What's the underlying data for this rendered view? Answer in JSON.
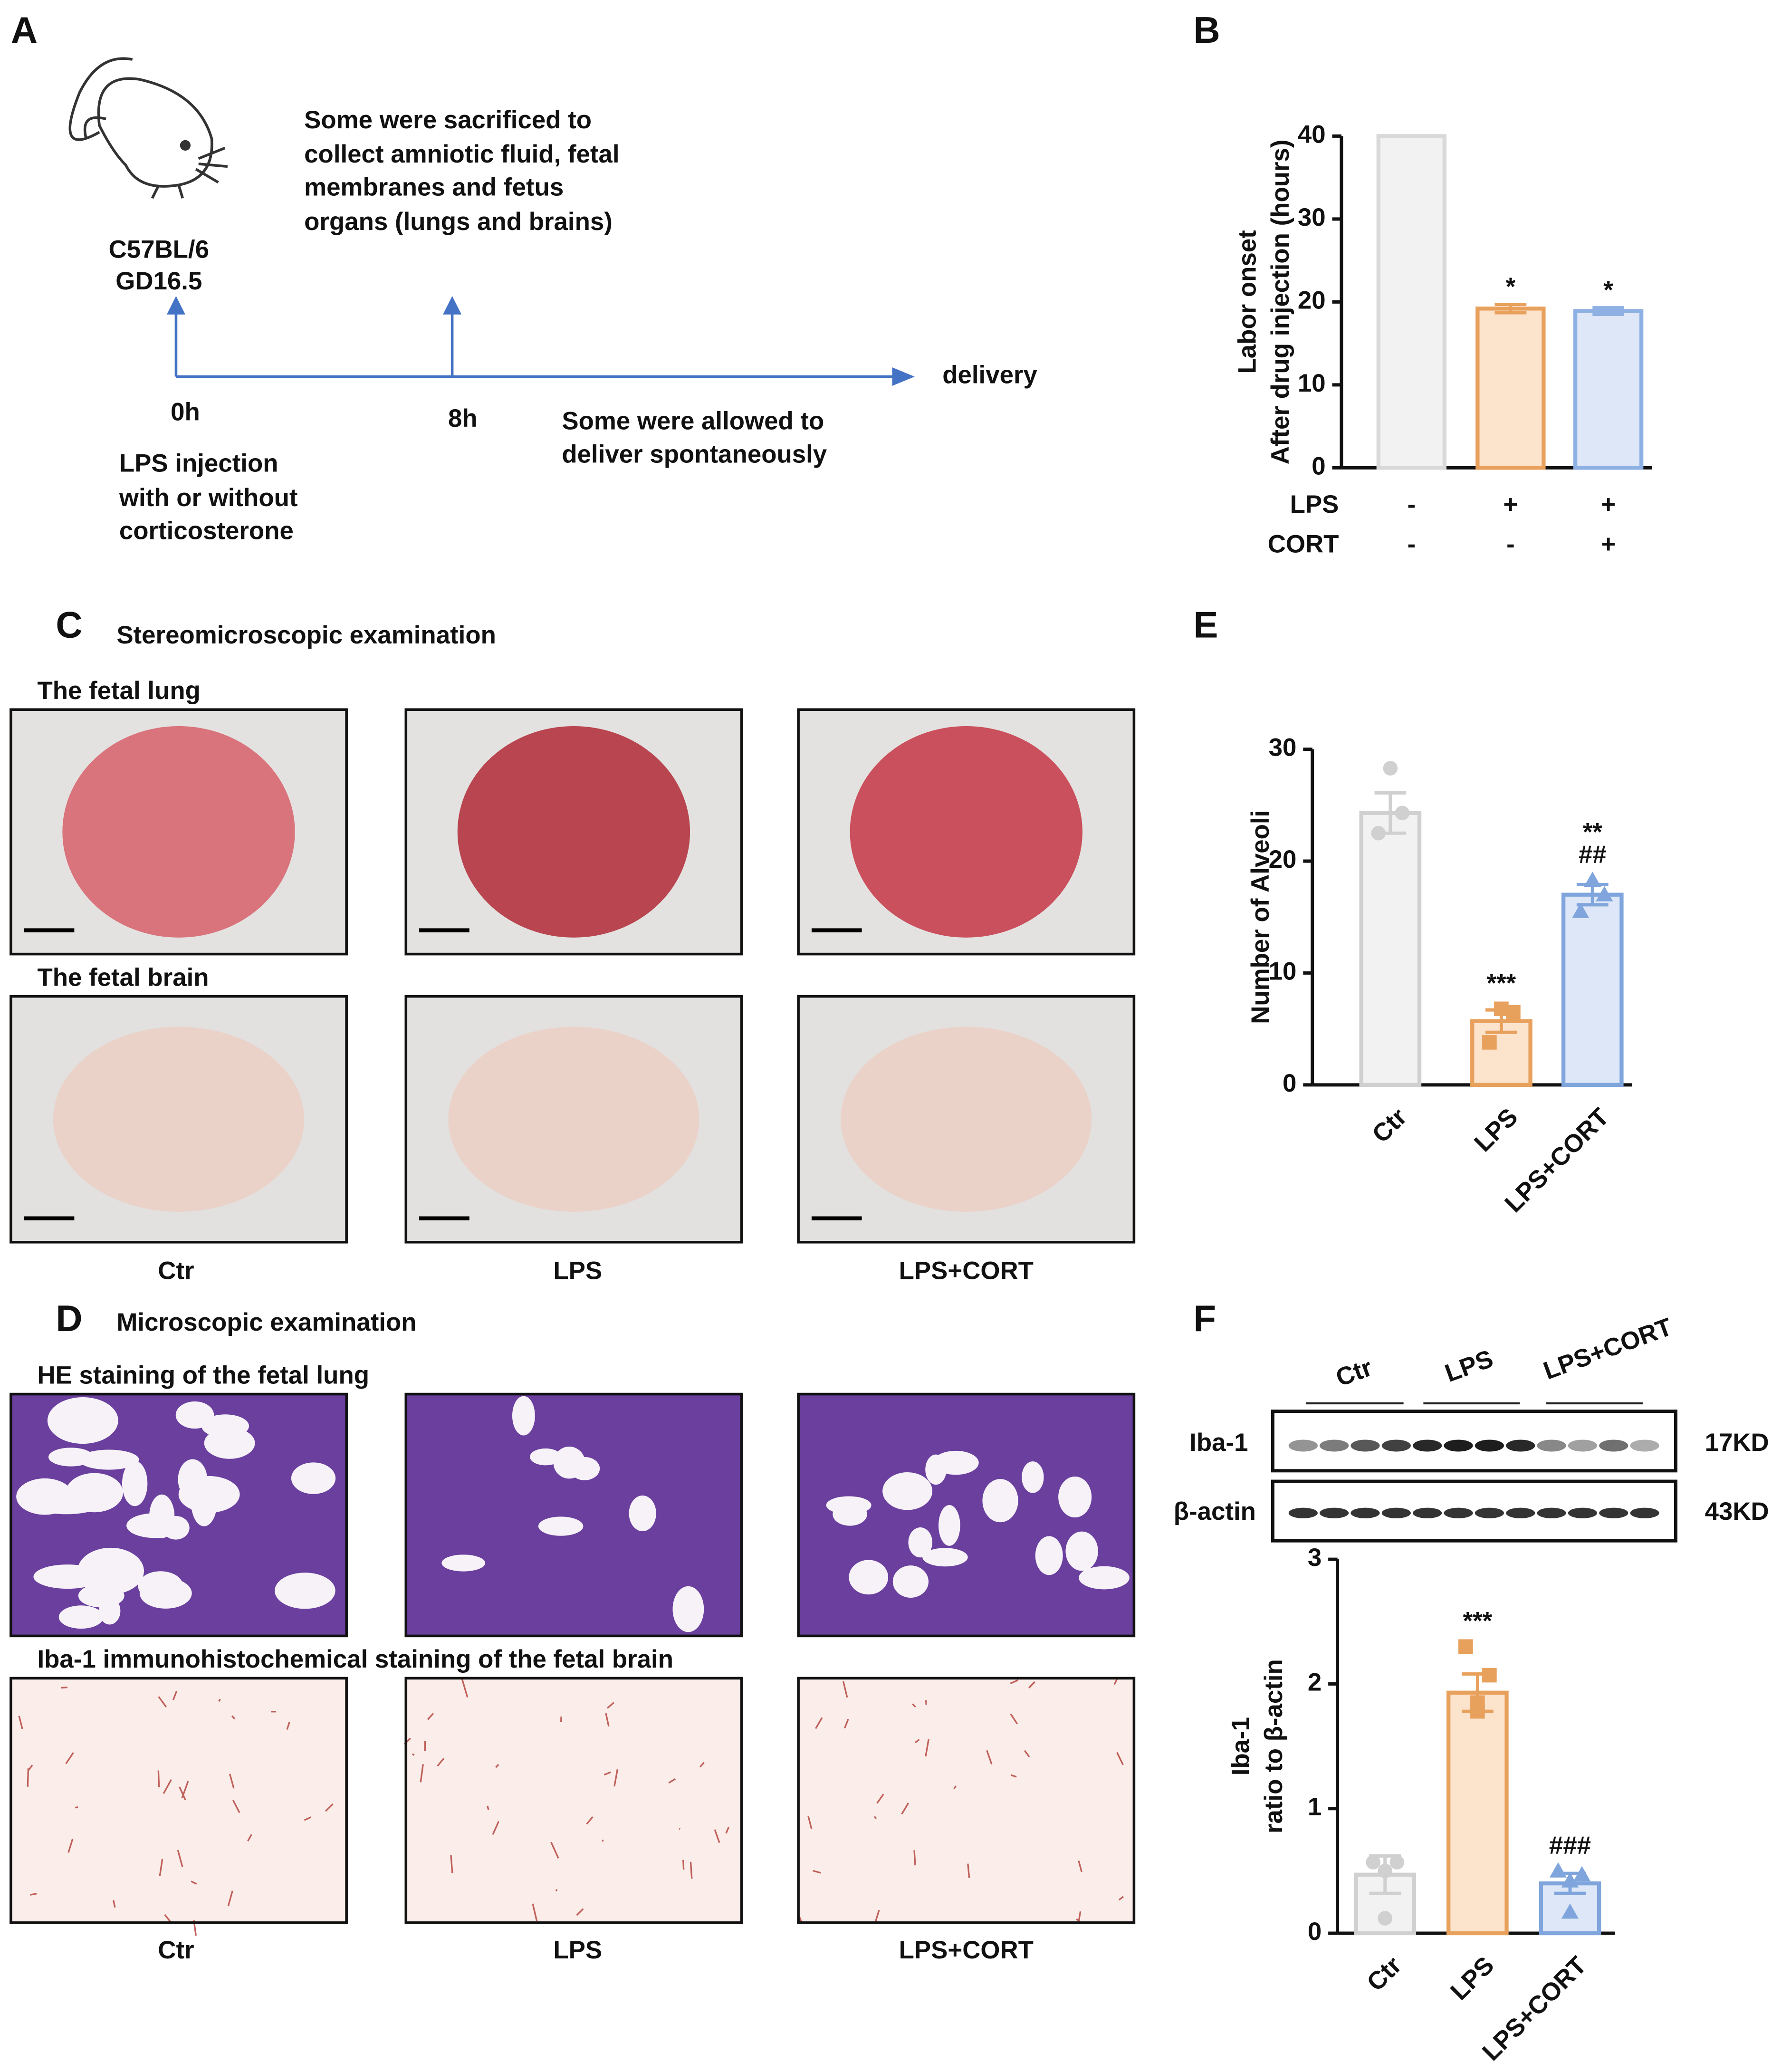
{
  "panels": {
    "A": {
      "label": "A",
      "strain": [
        "C57BL/6",
        "GD16.5"
      ],
      "sacrifice": [
        "Some were sacrificed to",
        "collect amniotic fluid, fetal",
        "membranes and fetus",
        "organs (lungs and brains)"
      ],
      "times": [
        "0h",
        "8h"
      ],
      "end": "delivery",
      "injection": [
        "LPS injection",
        "with or without",
        "corticosterone"
      ],
      "spontaneous": [
        "Some  were allowed to",
        "deliver spontaneously"
      ]
    },
    "C": {
      "label": "C",
      "title": "Stereomicroscopic examination",
      "rows": [
        "The fetal lung",
        "The fetal brain"
      ],
      "groups": [
        "Ctr",
        "LPS",
        "LPS+CORT"
      ]
    },
    "D": {
      "label": "D",
      "title": "Microscopic examination",
      "rows": [
        "HE staining of the fetal lung",
        "Iba-1 immunohistochemical staining of the fetal brain"
      ],
      "groups": [
        "Ctr",
        "LPS",
        "LPS+CORT"
      ]
    },
    "F": {
      "label": "F",
      "groups": [
        "Ctr",
        "LPS",
        "LPS+CORT"
      ],
      "rows": [
        {
          "name": "Iba-1",
          "size": "17KD"
        },
        {
          "name": "β-actin",
          "size": "43KD"
        }
      ]
    }
  },
  "chart_data": [
    {
      "type": "bar",
      "panel": "B",
      "ylabel": [
        "Labor onset",
        "After drug injection (hours)"
      ],
      "x_rows": [
        {
          "name": "LPS",
          "values": [
            "-",
            "+",
            "+"
          ]
        },
        {
          "name": "CORT",
          "values": [
            "-",
            "-",
            "+"
          ]
        }
      ],
      "values": [
        40,
        19.2,
        18.9
      ],
      "errors": [
        null,
        0.5,
        0.4
      ],
      "labels": [
        null,
        [
          "*"
        ],
        [
          "*"
        ]
      ],
      "colors": [
        "#d9d9d9",
        "#e8a15c",
        "#8eb0e2"
      ],
      "fills": [
        "#f2f2f2",
        "#fbe3cc",
        "#dde7f7"
      ],
      "ylim": [
        0,
        40
      ],
      "yticks": [
        0,
        10,
        20,
        30,
        40
      ]
    },
    {
      "type": "bar",
      "panel": "E",
      "ylabel": [
        "Number of Alveoli"
      ],
      "categories": [
        "Ctr",
        "LPS",
        "LPS+CORT"
      ],
      "values": [
        24.3,
        5.7,
        17
      ],
      "errors": [
        1.8,
        1.0,
        0.9
      ],
      "points": [
        [
          28.3,
          22.5,
          24.3
        ],
        [
          6.8,
          3.8,
          6.5
        ],
        [
          18.3,
          15.5,
          17
        ]
      ],
      "markers": [
        "circle",
        "square",
        "triangle"
      ],
      "labels": [
        null,
        [
          "***"
        ],
        [
          "**",
          "##"
        ]
      ],
      "colors": [
        "#d0d0d0",
        "#e8a15c",
        "#7fa5dc"
      ],
      "fills": [
        "#f2f2f2",
        "#fbe3cc",
        "#dde7f7"
      ],
      "ylim": [
        0,
        30
      ],
      "yticks": [
        0,
        10,
        20,
        30
      ]
    },
    {
      "type": "bar",
      "panel": "F",
      "ylabel": [
        "Iba-1",
        "ratio to β-actin"
      ],
      "categories": [
        "Ctr",
        "LPS",
        "LPS+CORT"
      ],
      "values": [
        0.47,
        1.93,
        0.4
      ],
      "errors": [
        0.15,
        0.15,
        0.08
      ],
      "points": [
        [
          0.57,
          0.57,
          0.5,
          0.12
        ],
        [
          2.3,
          2.07,
          1.85,
          1.78
        ],
        [
          0.5,
          0.47,
          0.42,
          0.17
        ]
      ],
      "markers": [
        "circle",
        "square",
        "triangle"
      ],
      "labels": [
        null,
        [
          "***"
        ],
        [
          "###"
        ]
      ],
      "colors": [
        "#d0d0d0",
        "#e8a15c",
        "#7fa5dc"
      ],
      "fills": [
        "#f2f2f2",
        "#fbe3cc",
        "#dde7f7"
      ],
      "ylim": [
        0,
        3
      ],
      "yticks": [
        0,
        1,
        2,
        3
      ]
    }
  ]
}
